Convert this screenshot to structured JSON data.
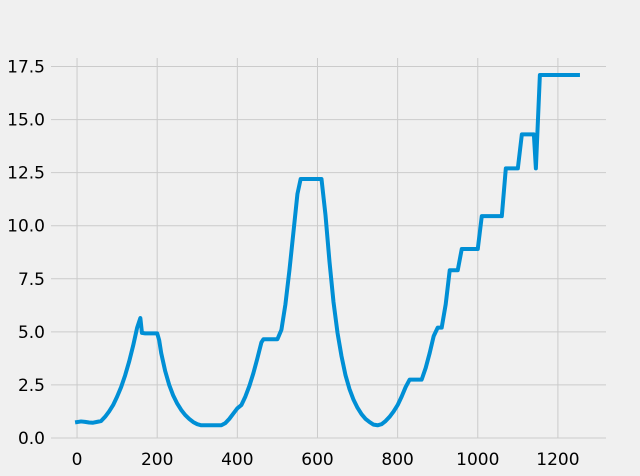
{
  "chart_data": {
    "type": "line",
    "title": "",
    "xlabel": "",
    "ylabel": "",
    "xlim": [
      -65,
      1320
    ],
    "ylim": [
      0,
      17.9
    ],
    "grid": true,
    "legend": "none",
    "colors": {
      "series": "#008fd5",
      "background": "#f0f0f0",
      "grid": "#cbcbcb"
    },
    "x_ticks": [
      0,
      200,
      400,
      600,
      800,
      1000,
      1200
    ],
    "x_tick_labels": [
      "0",
      "200",
      "400",
      "600",
      "800",
      "1000",
      "1200"
    ],
    "y_ticks": [
      0.0,
      2.5,
      5.0,
      7.5,
      10.0,
      12.5,
      15.0,
      17.5
    ],
    "y_tick_labels": [
      "0.0",
      "2.5",
      "5.0",
      "7.5",
      "10.0",
      "12.5",
      "15.0",
      "17.5"
    ],
    "series": [
      {
        "x": [
          0,
          10,
          20,
          30,
          40,
          50,
          60,
          70,
          80,
          90,
          100,
          110,
          120,
          130,
          140,
          150,
          158,
          162,
          170,
          180,
          190,
          200,
          205,
          210,
          220,
          230,
          240,
          250,
          260,
          270,
          280,
          290,
          300,
          310,
          320,
          340,
          360,
          370,
          380,
          390,
          400,
          410,
          420,
          430,
          440,
          450,
          460,
          465,
          480,
          500,
          510,
          520,
          530,
          540,
          550,
          558,
          570,
          590,
          610,
          620,
          630,
          640,
          650,
          660,
          670,
          680,
          690,
          700,
          710,
          720,
          730,
          740,
          750,
          760,
          770,
          780,
          790,
          800,
          810,
          820,
          830,
          835,
          840,
          860,
          870,
          880,
          890,
          900,
          910,
          920,
          930,
          950,
          960,
          980,
          990,
          1000,
          1010,
          1020,
          1030,
          1060,
          1070,
          1080,
          1090,
          1100,
          1110,
          1120,
          1140,
          1145,
          1155,
          1165,
          1200,
          1250
        ],
        "y": [
          0.75,
          0.78,
          0.76,
          0.73,
          0.72,
          0.76,
          0.8,
          1.0,
          1.25,
          1.55,
          1.95,
          2.4,
          2.95,
          3.6,
          4.35,
          5.2,
          5.65,
          4.95,
          4.93,
          4.93,
          4.93,
          4.93,
          4.6,
          4.0,
          3.15,
          2.5,
          2.0,
          1.62,
          1.32,
          1.08,
          0.9,
          0.75,
          0.65,
          0.6,
          0.6,
          0.6,
          0.6,
          0.7,
          0.9,
          1.15,
          1.4,
          1.55,
          1.95,
          2.45,
          3.05,
          3.75,
          4.5,
          4.65,
          4.65,
          4.65,
          5.1,
          6.3,
          7.9,
          9.7,
          11.5,
          12.2,
          12.2,
          12.2,
          12.2,
          10.5,
          8.3,
          6.4,
          4.95,
          3.85,
          2.95,
          2.3,
          1.8,
          1.42,
          1.12,
          0.9,
          0.75,
          0.63,
          0.6,
          0.65,
          0.8,
          1.0,
          1.25,
          1.55,
          1.95,
          2.4,
          2.75,
          2.75,
          2.75,
          2.75,
          3.3,
          4.0,
          4.8,
          5.2,
          5.2,
          6.3,
          7.9,
          7.9,
          8.9,
          8.9,
          8.9,
          8.9,
          10.45,
          10.45,
          10.45,
          10.45,
          12.7,
          12.7,
          12.7,
          12.7,
          14.3,
          14.3,
          14.3,
          12.7,
          17.1,
          17.1,
          17.1,
          17.1
        ]
      }
    ]
  }
}
